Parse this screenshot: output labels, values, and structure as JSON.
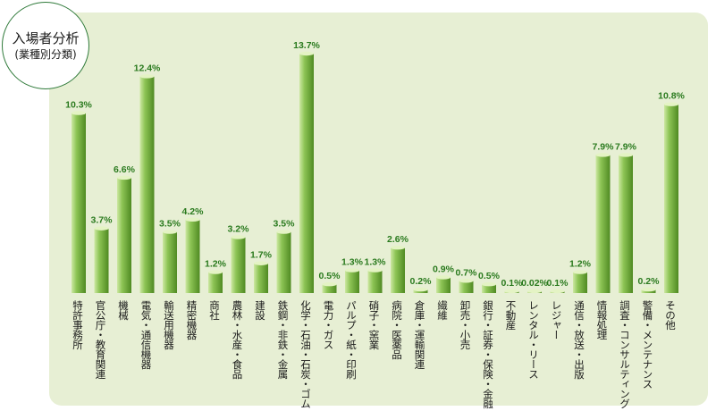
{
  "chart_data": {
    "type": "bar",
    "title": "入場者分析",
    "subtitle": "(業種別分類)",
    "categories": [
      "特許事務所",
      "官公庁・教育関連",
      "機械",
      "電気・通信機器",
      "輸送用機器",
      "精密機器",
      "商社",
      "農林・水産・食品",
      "建設",
      "鉄鋼・非鉄・金属",
      "化学・石油・石炭・ゴム",
      "電力・ガス",
      "パルプ・紙・印刷",
      "硝子・窯業",
      "病院・医薬品",
      "倉庫・運輸関連",
      "繊維",
      "卸売・小売",
      "銀行・証券・保険・金融",
      "不動産",
      "レンタル・リース",
      "レジャー",
      "通信・放送・出版",
      "情報処理",
      "調査・コンサルティング",
      "警備・メンテナンス",
      "その他"
    ],
    "values": [
      10.3,
      3.7,
      6.6,
      12.4,
      3.5,
      4.2,
      1.2,
      3.2,
      1.7,
      3.5,
      13.7,
      0.5,
      1.3,
      1.3,
      2.6,
      0.2,
      0.9,
      0.7,
      0.5,
      0.1,
      0.02,
      0.1,
      1.2,
      7.9,
      7.9,
      0.2,
      10.8
    ],
    "value_labels": [
      "10.3%",
      "3.7%",
      "6.6%",
      "12.4%",
      "3.5%",
      "4.2%",
      "1.2%",
      "3.2%",
      "1.7%",
      "3.5%",
      "13.7%",
      "0.5%",
      "1.3%",
      "1.3%",
      "2.6%",
      "0.2%",
      "0.9%",
      "0.7%",
      "0.5%",
      "0.1%",
      "0.02%",
      "0.1%",
      "1.2%",
      "7.9%",
      "7.9%",
      "0.2%",
      "10.8%"
    ],
    "unit": "%",
    "ylim": [
      0,
      13.7
    ],
    "grid": false,
    "legend": "none",
    "colors": {
      "panel": "#e7efd4",
      "bar_light": "#cde8a2",
      "bar_mid": "#8dc455",
      "bar_dark": "#4f8a22",
      "bar_top": "#e4f3c4",
      "value_label": "#2a7a1e",
      "category_label": "#1a1a1a",
      "badge_border": "#2f7a3a"
    }
  }
}
